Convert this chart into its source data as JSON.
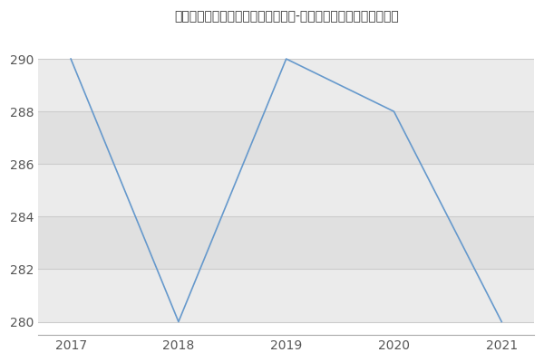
{
  "title": "西北大学矿物学、岩石学、矿床学（-历年复试）研究生录取分数线",
  "x": [
    2017,
    2018,
    2019,
    2020,
    2021
  ],
  "y": [
    290,
    280,
    290,
    288,
    280
  ],
  "line_color": "#6699cc",
  "bg_color": "#ffffff",
  "plot_bg_color_light": "#f0f0f0",
  "plot_bg_color_dark": "#e0e0e0",
  "grid_color": "#cccccc",
  "xlim": [
    2016.7,
    2021.3
  ],
  "ylim": [
    279.5,
    291.0
  ],
  "yticks": [
    280,
    282,
    284,
    286,
    288,
    290
  ],
  "xticks": [
    2017,
    2018,
    2019,
    2020,
    2021
  ],
  "title_fontsize": 13,
  "tick_fontsize": 10,
  "figsize": [
    6.0,
    4.0
  ],
  "dpi": 100
}
